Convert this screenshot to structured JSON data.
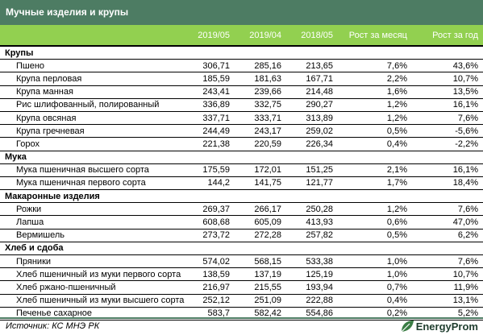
{
  "title": "Мучные изделия и крупы",
  "columns": [
    "",
    "2019/05",
    "2019/04",
    "2018/05",
    "Рост за месяц",
    "Рост за год"
  ],
  "groups": [
    {
      "name": "Крупы",
      "rows": [
        [
          "Пшено",
          "306,71",
          "285,16",
          "213,65",
          "7,6%",
          "43,6%"
        ],
        [
          "Крупа перловая",
          "185,59",
          "181,63",
          "167,71",
          "2,2%",
          "10,7%"
        ],
        [
          "Крупа манная",
          "243,41",
          "239,66",
          "214,48",
          "1,6%",
          "13,5%"
        ],
        [
          "Рис шлифованный, полированный",
          "336,89",
          "332,75",
          "290,27",
          "1,2%",
          "16,1%"
        ],
        [
          "Крупа овсяная",
          "337,71",
          "333,71",
          "313,89",
          "1,2%",
          "7,6%"
        ],
        [
          "Крупа гречневая",
          "244,49",
          "243,17",
          "259,02",
          "0,5%",
          "-5,6%"
        ],
        [
          "Горох",
          "221,38",
          "220,59",
          "226,34",
          "0,4%",
          "-2,2%"
        ]
      ]
    },
    {
      "name": "Мука",
      "rows": [
        [
          "Мука пшеничная высшего сорта",
          "175,59",
          "172,01",
          "151,25",
          "2,1%",
          "16,1%"
        ],
        [
          "Мука пшеничная первого сорта",
          "144,2",
          "141,75",
          "121,77",
          "1,7%",
          "18,4%"
        ]
      ]
    },
    {
      "name": "Макаронные изделия",
      "rows": [
        [
          "Рожки",
          "269,37",
          "266,17",
          "250,28",
          "1,2%",
          "7,6%"
        ],
        [
          "Лапша",
          "608,68",
          "605,09",
          "413,93",
          "0,6%",
          "47,0%"
        ],
        [
          "Вермишель",
          "273,72",
          "272,28",
          "257,82",
          "0,5%",
          "6,2%"
        ]
      ]
    },
    {
      "name": "Хлеб и сдоба",
      "rows": [
        [
          "Пряники",
          "574,02",
          "568,15",
          "533,38",
          "1,0%",
          "7,6%"
        ],
        [
          "Хлеб пшеничный из муки первого сорта",
          "138,59",
          "137,19",
          "125,19",
          "1,0%",
          "10,7%"
        ],
        [
          "Хлеб ржано-пшеничный",
          "216,97",
          "215,55",
          "193,94",
          "0,7%",
          "11,9%"
        ],
        [
          "Хлеб пшеничный из муки высшего сорта",
          "252,12",
          "251,09",
          "222,88",
          "0,4%",
          "13,1%"
        ],
        [
          "Печенье сахарное",
          "583,7",
          "582,42",
          "554,86",
          "0,2%",
          "5,2%"
        ]
      ]
    }
  ],
  "source": "Источник: КС МНЭ РК",
  "logo_text": "EnergyProm",
  "colors": {
    "title_bg": "#4d7c63",
    "header_bg": "#92d050"
  }
}
